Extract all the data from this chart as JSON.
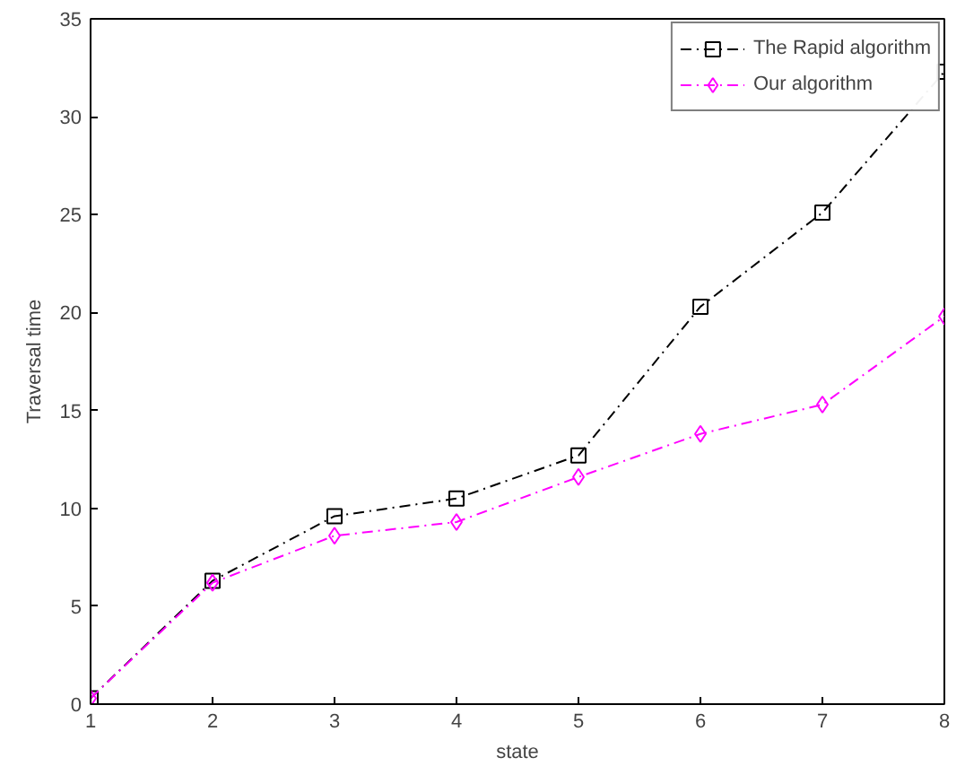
{
  "chart_data": {
    "type": "line",
    "xlabel": "state",
    "ylabel": "Traversal time",
    "x": [
      1,
      2,
      3,
      4,
      5,
      6,
      7,
      8
    ],
    "series": [
      {
        "name": "The Rapid algorithm",
        "color": "#000000",
        "marker": "square",
        "values": [
          0.3,
          6.3,
          9.6,
          10.5,
          12.7,
          20.3,
          25.1,
          32.3
        ]
      },
      {
        "name": "Our algorithm",
        "color": "#ff00ff",
        "marker": "diamond",
        "values": [
          0.3,
          6.2,
          8.6,
          9.3,
          11.6,
          13.8,
          15.3,
          19.8
        ]
      }
    ],
    "xlim": [
      1,
      8
    ],
    "ylim": [
      0,
      35
    ],
    "xticks": [
      1,
      2,
      3,
      4,
      5,
      6,
      7,
      8
    ],
    "yticks": [
      0,
      5,
      10,
      15,
      20,
      25,
      30,
      35
    ],
    "grid": false,
    "legend": "top right",
    "line_style": "dashed"
  }
}
